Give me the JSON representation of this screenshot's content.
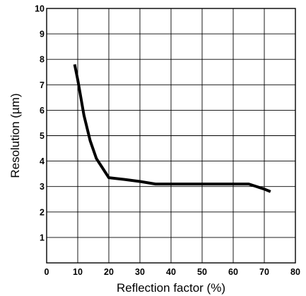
{
  "chart_data": {
    "type": "line",
    "xlabel": "Reflection factor (%)",
    "ylabel": "Resolution (µm)",
    "xlim": [
      0,
      80
    ],
    "ylim": [
      0,
      10
    ],
    "xticks": [
      0,
      10,
      20,
      30,
      40,
      50,
      60,
      70,
      80
    ],
    "yticks": [
      1,
      2,
      3,
      4,
      5,
      6,
      7,
      8,
      9,
      10
    ],
    "grid": true,
    "series": [
      {
        "x": [
          9,
          10,
          12,
          14,
          16,
          20,
          25,
          30,
          35,
          40,
          50,
          60,
          65,
          70,
          72
        ],
        "y": [
          7.8,
          7.2,
          5.8,
          4.8,
          4.1,
          3.35,
          3.28,
          3.2,
          3.1,
          3.1,
          3.1,
          3.1,
          3.1,
          2.9,
          2.8
        ]
      }
    ]
  }
}
